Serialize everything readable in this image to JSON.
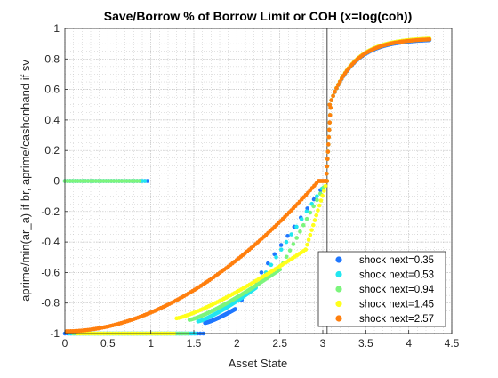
{
  "chart_data": {
    "type": "scatter",
    "title": "Save/Borrow % of Borrow Limit or COH (x=log(coh))",
    "xlabel": "Asset State",
    "ylabel": "aprime/min(ar_a) if br, aprime/cashonhand if sv",
    "xlim": [
      0,
      4.5
    ],
    "ylim": [
      -1,
      1
    ],
    "xticks": [
      0,
      0.5,
      1,
      1.5,
      2,
      2.5,
      3,
      3.5,
      4,
      4.5
    ],
    "xtick_labels": [
      "0",
      "0.5",
      "1",
      "1.5",
      "2",
      "2.5",
      "3",
      "3.5",
      "4",
      "4.5"
    ],
    "yticks": [
      -1,
      -0.8,
      -0.6,
      -0.4,
      -0.2,
      0,
      0.2,
      0.4,
      0.6,
      0.8,
      1
    ],
    "ytick_labels": [
      "-1",
      "-0.8",
      "-0.6",
      "-0.4",
      "-0.2",
      "0",
      "0.2",
      "0.4",
      "0.6",
      "0.8",
      "1"
    ],
    "grid": "minor dotted",
    "legend_position": "bottom-right",
    "reference_lines": {
      "x": 3.05,
      "y": 0
    },
    "series": [
      {
        "name": "shock next=0.35",
        "color": "#1f77ff",
        "borrow_min_x": 0.0,
        "borrow_max_x": 1.63,
        "borrow_end_x": 1.98,
        "borrow_end_y": -0.84,
        "top_y": 0.93
      },
      {
        "name": "shock next=0.53",
        "color": "#22e6f0",
        "borrow_min_x": 0.0,
        "borrow_max_x": 1.55,
        "borrow_end_x": 2.22,
        "borrow_end_y": -0.7,
        "top_y": 0.935
      },
      {
        "name": "shock next=0.94",
        "color": "#7cf57c",
        "borrow_min_x": 0.0,
        "borrow_max_x": 1.45,
        "borrow_end_x": 2.5,
        "borrow_end_y": -0.58,
        "top_y": 0.94
      },
      {
        "name": "shock next=1.45",
        "color": "#ffff1a",
        "borrow_min_x": 0.0,
        "borrow_max_x": 1.3,
        "borrow_end_x": 2.8,
        "borrow_end_y": -0.45,
        "top_y": 0.94
      },
      {
        "name": "shock next=2.57",
        "color": "#ff7f0e",
        "borrow_min_x": 0.0,
        "borrow_max_x": 0.0,
        "borrow_end_x": 2.95,
        "borrow_end_y": 0.0,
        "top_y": 0.935
      }
    ]
  }
}
